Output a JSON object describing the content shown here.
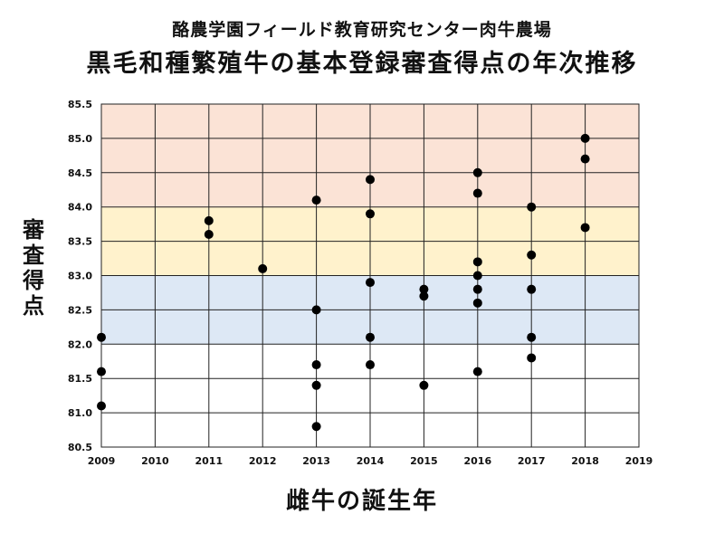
{
  "chart_data": {
    "type": "scatter",
    "subtitle": "酪農学園フィールド教育研究センター肉牛農場",
    "title": "黒毛和種繁殖牛の基本登録審査得点の年次推移",
    "xlabel": "雌牛の誕生年",
    "ylabel": "審査得点",
    "xlim": [
      2009,
      2019
    ],
    "ylim": [
      80.5,
      85.5
    ],
    "x_ticks": [
      "2009",
      "2010",
      "2011",
      "2012",
      "2013",
      "2014",
      "2015",
      "2016",
      "2017",
      "2018",
      "2019"
    ],
    "y_ticks": [
      "80.5",
      "81.0",
      "81.5",
      "82.0",
      "82.5",
      "83.0",
      "83.5",
      "84.0",
      "84.5",
      "85.0",
      "85.5"
    ],
    "grid": true,
    "bands": [
      {
        "from": 84.0,
        "to": 85.5,
        "color": "#fbe3d6"
      },
      {
        "from": 83.0,
        "to": 84.0,
        "color": "#fff2cc"
      },
      {
        "from": 82.0,
        "to": 83.0,
        "color": "#dde8f5"
      }
    ],
    "marker_color": "#000000",
    "points": [
      {
        "x": 2009,
        "y": 82.1
      },
      {
        "x": 2009,
        "y": 81.6
      },
      {
        "x": 2009,
        "y": 81.1
      },
      {
        "x": 2011,
        "y": 83.8
      },
      {
        "x": 2011,
        "y": 83.6
      },
      {
        "x": 2012,
        "y": 83.1
      },
      {
        "x": 2013,
        "y": 84.1
      },
      {
        "x": 2013,
        "y": 82.5
      },
      {
        "x": 2013,
        "y": 81.7
      },
      {
        "x": 2013,
        "y": 81.4
      },
      {
        "x": 2013,
        "y": 80.8
      },
      {
        "x": 2014,
        "y": 84.4
      },
      {
        "x": 2014,
        "y": 83.9
      },
      {
        "x": 2014,
        "y": 82.9
      },
      {
        "x": 2014,
        "y": 82.1
      },
      {
        "x": 2014,
        "y": 81.7
      },
      {
        "x": 2015,
        "y": 82.8
      },
      {
        "x": 2015,
        "y": 82.7
      },
      {
        "x": 2015,
        "y": 81.4
      },
      {
        "x": 2016,
        "y": 84.5
      },
      {
        "x": 2016,
        "y": 84.2
      },
      {
        "x": 2016,
        "y": 83.2
      },
      {
        "x": 2016,
        "y": 83.0
      },
      {
        "x": 2016,
        "y": 82.8
      },
      {
        "x": 2016,
        "y": 82.6
      },
      {
        "x": 2016,
        "y": 81.6
      },
      {
        "x": 2017,
        "y": 84.0
      },
      {
        "x": 2017,
        "y": 83.3
      },
      {
        "x": 2017,
        "y": 82.8
      },
      {
        "x": 2017,
        "y": 82.1
      },
      {
        "x": 2017,
        "y": 81.8
      },
      {
        "x": 2018,
        "y": 85.0
      },
      {
        "x": 2018,
        "y": 84.7
      },
      {
        "x": 2018,
        "y": 83.7
      }
    ]
  }
}
